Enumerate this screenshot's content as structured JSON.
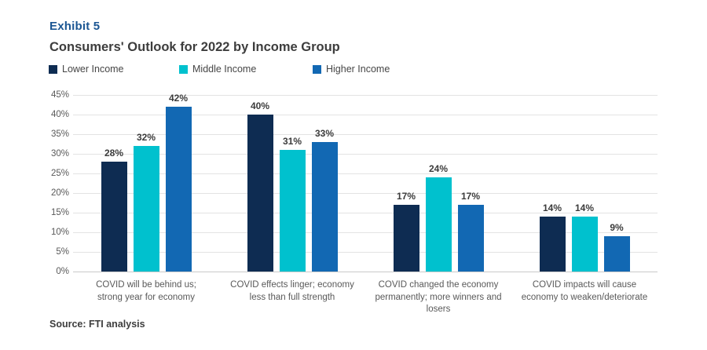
{
  "header": {
    "exhibit": "Exhibit 5",
    "title": "Consumers' Outlook for 2022 by Income Group"
  },
  "chart_data": {
    "type": "bar",
    "categories": [
      "COVID will be behind us; strong year for economy",
      "COVID effects linger; economy less than full strength",
      "COVID changed the economy permanently; more winners and losers",
      "COVID impacts will cause economy to weaken/deteriorate"
    ],
    "series": [
      {
        "name": "Lower Income",
        "color": "#0e2c52",
        "values": [
          28,
          40,
          17,
          14
        ]
      },
      {
        "name": "Middle Income",
        "color": "#00c1ce",
        "values": [
          32,
          31,
          24,
          14
        ]
      },
      {
        "name": "Higher Income",
        "color": "#1268b3",
        "values": [
          42,
          33,
          17,
          9
        ]
      }
    ],
    "value_suffix": "%",
    "title": "Consumers' Outlook for 2022 by Income Group",
    "xlabel": "",
    "ylabel": "",
    "ylim": [
      0,
      45
    ],
    "ytick_step": 5,
    "ytick_suffix": "%",
    "grid": true,
    "legend_position": "top"
  },
  "legend_x_positions": [
    62,
    228,
    398
  ],
  "source": "Source: FTI analysis",
  "colors": {
    "exhibit_text": "#1b5693",
    "title_text": "#3d3d3d",
    "axis_text": "#595959",
    "value_label_text": "#3b3b3b",
    "gridline": "#e3e3e3",
    "baseline": "#c9c9c9",
    "background": "#ffffff"
  }
}
